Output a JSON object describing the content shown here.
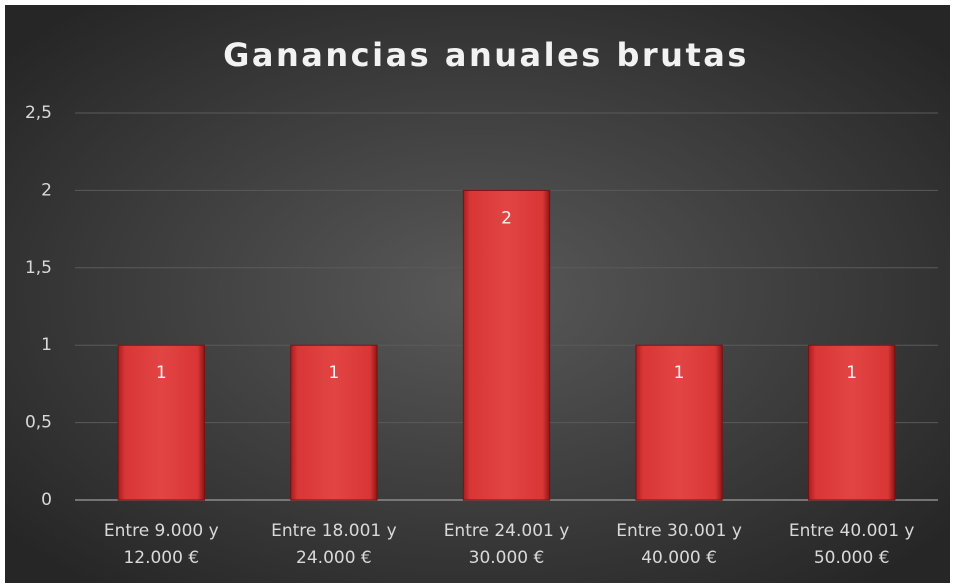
{
  "chart_data": {
    "type": "bar",
    "title": "Ganancias anuales brutas",
    "categories": [
      "Entre 9.000 y 12.000 €",
      "Entre 18.001 y 24.000 €",
      "Entre 24.001 y 30.000 €",
      "Entre 30.001 y 40.000 €",
      "Entre 40.001 y 50.000 €"
    ],
    "values": [
      1,
      1,
      2,
      1,
      1
    ],
    "color": "#d93636",
    "ylim": [
      0,
      2.5
    ],
    "yticks": [
      0,
      {
        "value": 0.5,
        "label": "0,5"
      },
      1,
      {
        "value": 1.5,
        "label": "1,5"
      },
      2,
      {
        "value": 2.5,
        "label": "2,5"
      }
    ],
    "grid": true
  }
}
